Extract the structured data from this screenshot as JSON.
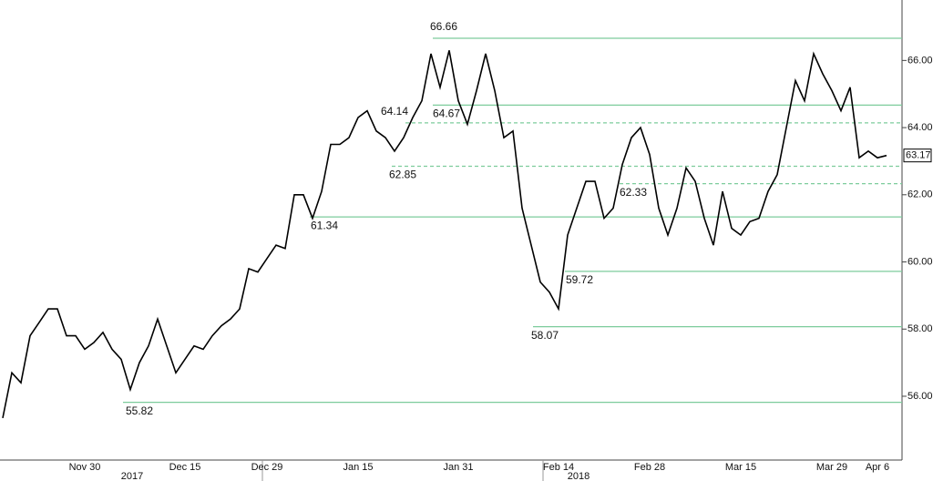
{
  "chart_data": {
    "type": "line",
    "categories": [
      null,
      null,
      null,
      null,
      null,
      null,
      null,
      null,
      null,
      "Nov 30",
      null,
      null,
      null,
      null,
      null,
      null,
      null,
      null,
      null,
      null,
      "Dec 15",
      null,
      null,
      null,
      null,
      null,
      null,
      null,
      null,
      "Dec 29",
      null,
      null,
      null,
      null,
      null,
      null,
      null,
      null,
      null,
      "Jan 15",
      null,
      null,
      null,
      null,
      null,
      null,
      null,
      null,
      null,
      null,
      "Jan 31",
      null,
      null,
      null,
      null,
      null,
      null,
      null,
      null,
      null,
      null,
      "Feb 14",
      null,
      null,
      null,
      null,
      null,
      null,
      null,
      null,
      null,
      "Feb 28",
      null,
      null,
      null,
      null,
      null,
      null,
      null,
      null,
      null,
      "Mar 15",
      null,
      null,
      null,
      null,
      null,
      null,
      null,
      null,
      null,
      "Mar 29",
      null,
      null,
      null,
      null,
      "Apr 6",
      null
    ],
    "year_labels": [
      "2017",
      "2018"
    ],
    "series": [
      {
        "color": "#000000",
        "values": [
          55.35,
          56.7,
          56.4,
          57.8,
          58.2,
          58.6,
          58.6,
          57.8,
          57.8,
          57.4,
          57.6,
          57.9,
          57.4,
          57.1,
          56.2,
          57.0,
          57.5,
          58.3,
          57.5,
          56.7,
          57.1,
          57.5,
          57.4,
          57.8,
          58.1,
          58.3,
          58.6,
          59.8,
          59.7,
          60.1,
          60.5,
          60.4,
          62.0,
          62.0,
          61.3,
          62.1,
          63.5,
          63.5,
          63.7,
          64.3,
          64.5,
          63.9,
          63.7,
          63.3,
          63.7,
          64.3,
          64.8,
          66.2,
          65.2,
          66.3,
          64.8,
          64.1,
          65.1,
          66.2,
          65.1,
          63.7,
          63.9,
          61.6,
          60.5,
          59.4,
          59.1,
          58.6,
          60.8,
          61.6,
          62.4,
          62.4,
          61.3,
          61.6,
          62.9,
          63.7,
          64.0,
          63.2,
          61.6,
          60.8,
          61.6,
          62.8,
          62.4,
          61.3,
          60.5,
          62.1,
          61.0,
          60.8,
          61.2,
          61.3,
          62.1,
          62.6,
          64.0,
          65.4,
          64.8,
          66.2,
          65.6,
          65.1,
          64.5,
          65.2,
          63.1,
          63.3,
          63.1,
          63.17
        ]
      }
    ],
    "levels": [
      {
        "value": 66.66,
        "style": "solid"
      },
      {
        "value": 64.67,
        "style": "solid"
      },
      {
        "value": 64.14,
        "style": "dashed"
      },
      {
        "value": 62.85,
        "style": "dashed"
      },
      {
        "value": 62.33,
        "style": "dashed"
      },
      {
        "value": 61.34,
        "style": "solid"
      },
      {
        "value": 59.72,
        "style": "solid"
      },
      {
        "value": 58.07,
        "style": "solid"
      },
      {
        "value": 55.82,
        "style": "solid"
      }
    ],
    "level_color": "#7dcc9c",
    "ylim": [
      54.1,
      67.8
    ],
    "yticks": [
      {
        "value": 56,
        "label": "56.00"
      },
      {
        "value": 58,
        "label": "58.00"
      },
      {
        "value": 60,
        "label": "60.00"
      },
      {
        "value": 62,
        "label": "62.00"
      },
      {
        "value": 64,
        "label": "64.00"
      },
      {
        "value": 66,
        "label": "66.00"
      }
    ]
  }
}
